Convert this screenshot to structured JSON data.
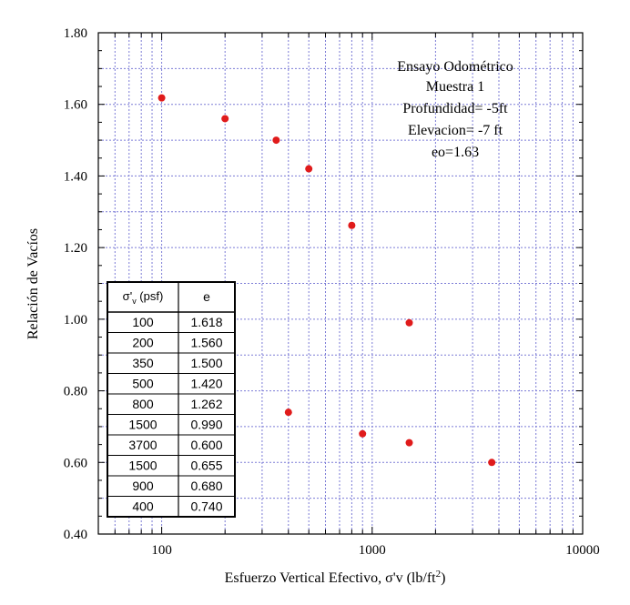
{
  "chart_data": {
    "type": "scatter",
    "title_lines": [
      "Ensayo Odométrico",
      "Muestra 1",
      "Profundidad= -5ft",
      "Elevacion= -7 ft",
      "eo=1.63"
    ],
    "xlabel": "Esfuerzo Vertical Efectivo, σ'v (lb/ft",
    "xlabel_sup": "2",
    "xlabel_end": ")",
    "ylabel": "Relación de Vacíos",
    "x_scale": "log",
    "xlim": [
      50,
      10000
    ],
    "ylim": [
      0.4,
      1.8
    ],
    "x_ticks": [
      100,
      1000,
      10000
    ],
    "x_tick_labels": [
      "100",
      "1000",
      "10000"
    ],
    "y_ticks": [
      0.4,
      0.6,
      0.8,
      1.0,
      1.2,
      1.4,
      1.6,
      1.8
    ],
    "y_tick_labels": [
      "0.40",
      "0.60",
      "0.80",
      "1.00",
      "1.20",
      "1.40",
      "1.60",
      "1.80"
    ],
    "grid": true,
    "grid_color": "#7b7bd6",
    "point_color": "#e01b1b",
    "points": [
      {
        "x": 100,
        "y": 1.618
      },
      {
        "x": 200,
        "y": 1.56
      },
      {
        "x": 350,
        "y": 1.5
      },
      {
        "x": 500,
        "y": 1.42
      },
      {
        "x": 800,
        "y": 1.262
      },
      {
        "x": 1500,
        "y": 0.99
      },
      {
        "x": 3700,
        "y": 0.6
      },
      {
        "x": 1500,
        "y": 0.655
      },
      {
        "x": 900,
        "y": 0.68
      },
      {
        "x": 400,
        "y": 0.74
      }
    ],
    "table": {
      "header_sigma": "σ'",
      "header_sub": "v",
      "header_unit": " (psf)",
      "header_e": "e",
      "rows": [
        [
          "100",
          "1.618"
        ],
        [
          "200",
          "1.560"
        ],
        [
          "350",
          "1.500"
        ],
        [
          "500",
          "1.420"
        ],
        [
          "800",
          "1.262"
        ],
        [
          "1500",
          "0.990"
        ],
        [
          "3700",
          "0.600"
        ],
        [
          "1500",
          "0.655"
        ],
        [
          "900",
          "0.680"
        ],
        [
          "400",
          "0.740"
        ]
      ]
    }
  }
}
